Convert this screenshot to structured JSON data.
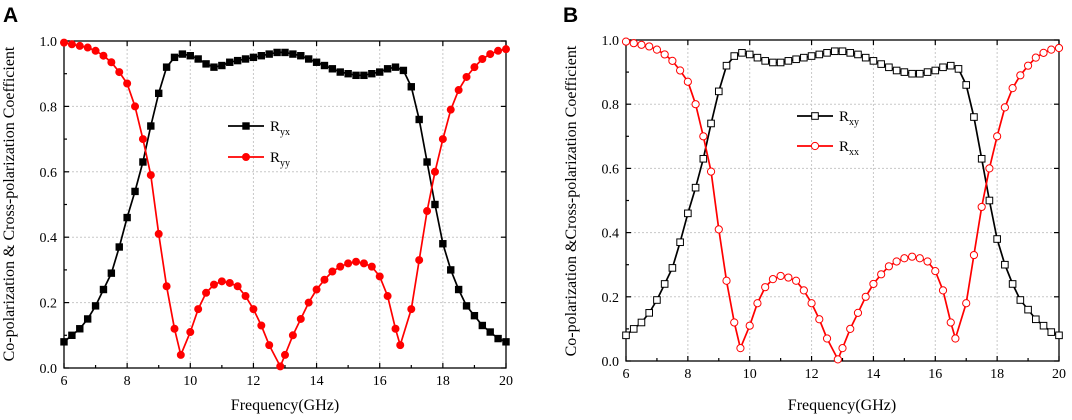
{
  "figure": {
    "panels": [
      "A",
      "B"
    ]
  },
  "chart_data": [
    {
      "type": "line",
      "panel": "A",
      "xlabel": "Frequency(GHz)",
      "ylabel": "Co-polarization & Cross-polarization Coefficient",
      "xlim": [
        6,
        20
      ],
      "ylim": [
        0,
        1.0
      ],
      "xticks": [
        6,
        8,
        10,
        12,
        14,
        16,
        18,
        20
      ],
      "yticks": [
        "0.0",
        "0.2",
        "0.4",
        "0.6",
        "0.8",
        "1.0"
      ],
      "grid": true,
      "legend_position": "center",
      "marker_style": "filled",
      "series": [
        {
          "name": "R",
          "sub": "yx",
          "color": "#000000",
          "marker": "square",
          "points": [
            [
              6.0,
              0.08
            ],
            [
              6.25,
              0.1
            ],
            [
              6.5,
              0.12
            ],
            [
              6.75,
              0.15
            ],
            [
              7.0,
              0.19
            ],
            [
              7.25,
              0.24
            ],
            [
              7.5,
              0.29
            ],
            [
              7.75,
              0.37
            ],
            [
              8.0,
              0.46
            ],
            [
              8.25,
              0.54
            ],
            [
              8.5,
              0.63
            ],
            [
              8.75,
              0.74
            ],
            [
              9.0,
              0.84
            ],
            [
              9.25,
              0.92
            ],
            [
              9.5,
              0.95
            ],
            [
              9.75,
              0.96
            ],
            [
              10.0,
              0.955
            ],
            [
              10.25,
              0.945
            ],
            [
              10.5,
              0.93
            ],
            [
              10.75,
              0.92
            ],
            [
              11.0,
              0.925
            ],
            [
              11.25,
              0.935
            ],
            [
              11.5,
              0.94
            ],
            [
              11.75,
              0.945
            ],
            [
              12.0,
              0.95
            ],
            [
              12.25,
              0.955
            ],
            [
              12.5,
              0.96
            ],
            [
              12.75,
              0.965
            ],
            [
              13.0,
              0.965
            ],
            [
              13.25,
              0.96
            ],
            [
              13.5,
              0.955
            ],
            [
              13.75,
              0.945
            ],
            [
              14.0,
              0.935
            ],
            [
              14.25,
              0.925
            ],
            [
              14.5,
              0.915
            ],
            [
              14.75,
              0.905
            ],
            [
              15.0,
              0.9
            ],
            [
              15.25,
              0.895
            ],
            [
              15.5,
              0.895
            ],
            [
              15.75,
              0.9
            ],
            [
              16.0,
              0.905
            ],
            [
              16.25,
              0.915
            ],
            [
              16.5,
              0.92
            ],
            [
              16.75,
              0.91
            ],
            [
              17.0,
              0.86
            ],
            [
              17.25,
              0.76
            ],
            [
              17.5,
              0.63
            ],
            [
              17.75,
              0.5
            ],
            [
              18.0,
              0.38
            ],
            [
              18.25,
              0.3
            ],
            [
              18.5,
              0.24
            ],
            [
              18.75,
              0.19
            ],
            [
              19.0,
              0.16
            ],
            [
              19.25,
              0.13
            ],
            [
              19.5,
              0.11
            ],
            [
              19.75,
              0.09
            ],
            [
              20.0,
              0.08
            ]
          ]
        },
        {
          "name": "R",
          "sub": "yy",
          "color": "#ff0000",
          "marker": "circle",
          "points": [
            [
              6.0,
              0.995
            ],
            [
              6.25,
              0.99
            ],
            [
              6.5,
              0.985
            ],
            [
              6.75,
              0.98
            ],
            [
              7.0,
              0.97
            ],
            [
              7.25,
              0.955
            ],
            [
              7.5,
              0.935
            ],
            [
              7.75,
              0.905
            ],
            [
              8.0,
              0.87
            ],
            [
              8.25,
              0.8
            ],
            [
              8.5,
              0.7
            ],
            [
              8.75,
              0.59
            ],
            [
              9.0,
              0.41
            ],
            [
              9.25,
              0.25
            ],
            [
              9.5,
              0.12
            ],
            [
              9.7,
              0.04
            ],
            [
              10.0,
              0.11
            ],
            [
              10.25,
              0.18
            ],
            [
              10.5,
              0.23
            ],
            [
              10.75,
              0.255
            ],
            [
              11.0,
              0.265
            ],
            [
              11.25,
              0.26
            ],
            [
              11.5,
              0.25
            ],
            [
              11.75,
              0.22
            ],
            [
              12.0,
              0.18
            ],
            [
              12.25,
              0.13
            ],
            [
              12.5,
              0.07
            ],
            [
              12.85,
              0.005
            ],
            [
              13.0,
              0.04
            ],
            [
              13.25,
              0.1
            ],
            [
              13.5,
              0.15
            ],
            [
              13.75,
              0.2
            ],
            [
              14.0,
              0.24
            ],
            [
              14.25,
              0.27
            ],
            [
              14.5,
              0.295
            ],
            [
              14.75,
              0.31
            ],
            [
              15.0,
              0.32
            ],
            [
              15.25,
              0.325
            ],
            [
              15.5,
              0.32
            ],
            [
              15.75,
              0.31
            ],
            [
              16.0,
              0.28
            ],
            [
              16.25,
              0.22
            ],
            [
              16.5,
              0.12
            ],
            [
              16.65,
              0.07
            ],
            [
              17.0,
              0.18
            ],
            [
              17.25,
              0.33
            ],
            [
              17.5,
              0.48
            ],
            [
              17.75,
              0.6
            ],
            [
              18.0,
              0.7
            ],
            [
              18.25,
              0.79
            ],
            [
              18.5,
              0.85
            ],
            [
              18.75,
              0.89
            ],
            [
              19.0,
              0.92
            ],
            [
              19.25,
              0.945
            ],
            [
              19.5,
              0.96
            ],
            [
              19.75,
              0.97
            ],
            [
              20.0,
              0.975
            ]
          ]
        }
      ]
    },
    {
      "type": "line",
      "panel": "B",
      "xlabel": "Frequency(GHz)",
      "ylabel": "Co-polarization &Cross-polarization Coefficient",
      "xlim": [
        6,
        20
      ],
      "ylim": [
        0,
        1.0
      ],
      "xticks": [
        6,
        8,
        10,
        12,
        14,
        16,
        18,
        20
      ],
      "yticks": [
        "0.0",
        "0.2",
        "0.4",
        "0.6",
        "0.8",
        "1.0"
      ],
      "grid": true,
      "legend_position": "center",
      "marker_style": "hollow",
      "series": [
        {
          "name": "R",
          "sub": "xy",
          "color": "#000000",
          "marker": "square",
          "points": [
            [
              6.0,
              0.08
            ],
            [
              6.25,
              0.1
            ],
            [
              6.5,
              0.12
            ],
            [
              6.75,
              0.15
            ],
            [
              7.0,
              0.19
            ],
            [
              7.25,
              0.24
            ],
            [
              7.5,
              0.29
            ],
            [
              7.75,
              0.37
            ],
            [
              8.0,
              0.46
            ],
            [
              8.25,
              0.54
            ],
            [
              8.5,
              0.63
            ],
            [
              8.75,
              0.74
            ],
            [
              9.0,
              0.84
            ],
            [
              9.25,
              0.92
            ],
            [
              9.5,
              0.95
            ],
            [
              9.75,
              0.96
            ],
            [
              10.0,
              0.955
            ],
            [
              10.25,
              0.945
            ],
            [
              10.5,
              0.935
            ],
            [
              10.75,
              0.93
            ],
            [
              11.0,
              0.93
            ],
            [
              11.25,
              0.935
            ],
            [
              11.5,
              0.94
            ],
            [
              11.75,
              0.945
            ],
            [
              12.0,
              0.95
            ],
            [
              12.25,
              0.955
            ],
            [
              12.5,
              0.96
            ],
            [
              12.75,
              0.965
            ],
            [
              13.0,
              0.965
            ],
            [
              13.25,
              0.96
            ],
            [
              13.5,
              0.955
            ],
            [
              13.75,
              0.945
            ],
            [
              14.0,
              0.935
            ],
            [
              14.25,
              0.925
            ],
            [
              14.5,
              0.915
            ],
            [
              14.75,
              0.905
            ],
            [
              15.0,
              0.9
            ],
            [
              15.25,
              0.895
            ],
            [
              15.5,
              0.895
            ],
            [
              15.75,
              0.9
            ],
            [
              16.0,
              0.905
            ],
            [
              16.25,
              0.915
            ],
            [
              16.5,
              0.92
            ],
            [
              16.75,
              0.91
            ],
            [
              17.0,
              0.86
            ],
            [
              17.25,
              0.76
            ],
            [
              17.5,
              0.63
            ],
            [
              17.75,
              0.5
            ],
            [
              18.0,
              0.38
            ],
            [
              18.25,
              0.3
            ],
            [
              18.5,
              0.24
            ],
            [
              18.75,
              0.19
            ],
            [
              19.0,
              0.16
            ],
            [
              19.25,
              0.13
            ],
            [
              19.5,
              0.11
            ],
            [
              19.75,
              0.09
            ],
            [
              20.0,
              0.08
            ]
          ]
        },
        {
          "name": "R",
          "sub": "xx",
          "color": "#ff0000",
          "marker": "circle",
          "points": [
            [
              6.0,
              0.995
            ],
            [
              6.25,
              0.99
            ],
            [
              6.5,
              0.985
            ],
            [
              6.75,
              0.98
            ],
            [
              7.0,
              0.97
            ],
            [
              7.25,
              0.955
            ],
            [
              7.5,
              0.935
            ],
            [
              7.75,
              0.905
            ],
            [
              8.0,
              0.87
            ],
            [
              8.25,
              0.8
            ],
            [
              8.5,
              0.7
            ],
            [
              8.75,
              0.59
            ],
            [
              9.0,
              0.41
            ],
            [
              9.25,
              0.25
            ],
            [
              9.5,
              0.12
            ],
            [
              9.7,
              0.04
            ],
            [
              10.0,
              0.11
            ],
            [
              10.25,
              0.18
            ],
            [
              10.5,
              0.23
            ],
            [
              10.75,
              0.255
            ],
            [
              11.0,
              0.265
            ],
            [
              11.25,
              0.26
            ],
            [
              11.5,
              0.25
            ],
            [
              11.75,
              0.22
            ],
            [
              12.0,
              0.18
            ],
            [
              12.25,
              0.13
            ],
            [
              12.5,
              0.07
            ],
            [
              12.85,
              0.005
            ],
            [
              13.0,
              0.04
            ],
            [
              13.25,
              0.1
            ],
            [
              13.5,
              0.15
            ],
            [
              13.75,
              0.2
            ],
            [
              14.0,
              0.24
            ],
            [
              14.25,
              0.27
            ],
            [
              14.5,
              0.295
            ],
            [
              14.75,
              0.31
            ],
            [
              15.0,
              0.32
            ],
            [
              15.25,
              0.325
            ],
            [
              15.5,
              0.32
            ],
            [
              15.75,
              0.31
            ],
            [
              16.0,
              0.28
            ],
            [
              16.25,
              0.22
            ],
            [
              16.5,
              0.12
            ],
            [
              16.65,
              0.07
            ],
            [
              17.0,
              0.18
            ],
            [
              17.25,
              0.33
            ],
            [
              17.5,
              0.48
            ],
            [
              17.75,
              0.6
            ],
            [
              18.0,
              0.7
            ],
            [
              18.25,
              0.79
            ],
            [
              18.5,
              0.85
            ],
            [
              18.75,
              0.89
            ],
            [
              19.0,
              0.92
            ],
            [
              19.25,
              0.945
            ],
            [
              19.5,
              0.96
            ],
            [
              19.75,
              0.97
            ],
            [
              20.0,
              0.975
            ]
          ]
        }
      ]
    }
  ]
}
